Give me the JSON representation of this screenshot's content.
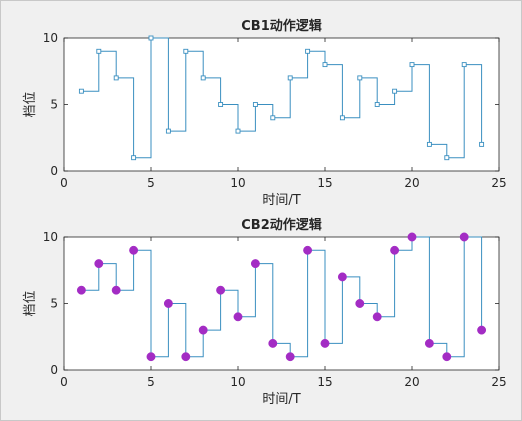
{
  "colors": {
    "line": "#3a8fc0",
    "marker_cb1": "#3a8fc0",
    "marker_cb2": "#a32cc4",
    "axes_bg": "#ffffff",
    "axis": "#262626"
  },
  "chart_data": [
    {
      "type": "line",
      "step": "post",
      "title": "CB1动作逻辑",
      "xlabel": "时间/T",
      "ylabel": "档位",
      "xlim": [
        0,
        25
      ],
      "ylim": [
        0,
        10
      ],
      "xticks": [
        0,
        5,
        10,
        15,
        20,
        25
      ],
      "yticks": [
        0,
        5,
        10
      ],
      "grid": false,
      "marker": "square",
      "x": [
        1,
        2,
        3,
        4,
        5,
        6,
        7,
        8,
        9,
        10,
        11,
        12,
        13,
        14,
        15,
        16,
        17,
        18,
        19,
        20,
        21,
        22,
        23,
        24
      ],
      "values": [
        6,
        9,
        7,
        1,
        10,
        3,
        9,
        7,
        5,
        3,
        5,
        4,
        7,
        9,
        8,
        4,
        7,
        5,
        6,
        8,
        2,
        1,
        8,
        2
      ]
    },
    {
      "type": "line",
      "step": "post",
      "title": "CB2动作逻辑",
      "xlabel": "时间/T",
      "ylabel": "档位",
      "xlim": [
        0,
        25
      ],
      "ylim": [
        0,
        10
      ],
      "xticks": [
        0,
        5,
        10,
        15,
        20,
        25
      ],
      "yticks": [
        0,
        5,
        10
      ],
      "grid": false,
      "marker": "circle",
      "x": [
        1,
        2,
        3,
        4,
        5,
        6,
        7,
        8,
        9,
        10,
        11,
        12,
        13,
        14,
        15,
        16,
        17,
        18,
        19,
        20,
        21,
        22,
        23,
        24
      ],
      "values": [
        6,
        8,
        6,
        9,
        1,
        5,
        1,
        3,
        6,
        4,
        8,
        2,
        1,
        9,
        2,
        7,
        5,
        4,
        9,
        10,
        2,
        1,
        10,
        3
      ]
    }
  ]
}
